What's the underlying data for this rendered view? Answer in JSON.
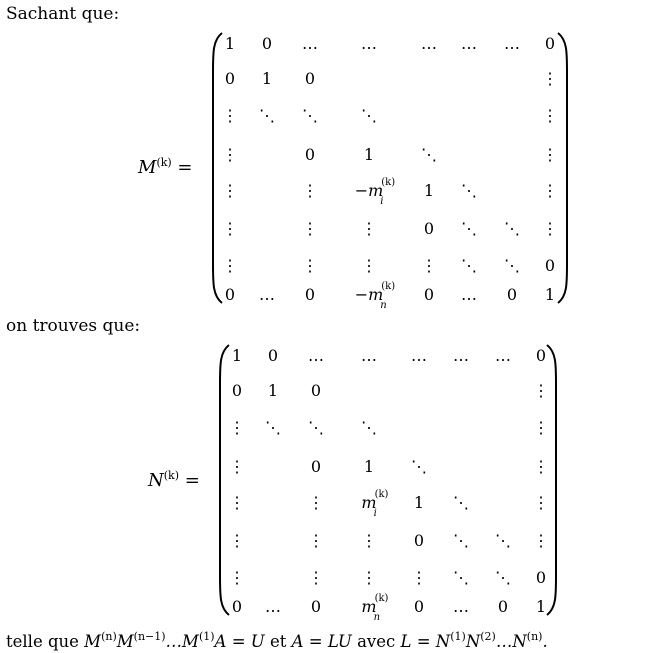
{
  "intro": "Sachant que:",
  "middle": "on trouves que:",
  "matrix_m": {
    "symbol": "M",
    "superscript": "(k)",
    "equals": "=",
    "rows": [
      [
        "1",
        "0",
        "…",
        "…",
        "…",
        "…",
        "…",
        "0"
      ],
      [
        "0",
        "1",
        "0",
        "",
        "",
        "",
        "",
        "⋮"
      ],
      [
        "⋮",
        "⋱",
        "⋱",
        "⋱",
        "",
        "",
        "",
        "⋮"
      ],
      [
        "⋮",
        "",
        "0",
        "1",
        "⋱",
        "",
        "",
        "⋮"
      ],
      [
        "⋮",
        "",
        "⋮",
        "-m_i^(k)",
        "1",
        "⋱",
        "",
        "⋮"
      ],
      [
        "⋮",
        "",
        "⋮",
        "⋮",
        "0",
        "⋱",
        "⋱",
        "⋮"
      ],
      [
        "⋮",
        "",
        "⋮",
        "⋮",
        "⋮",
        "⋱",
        "⋱",
        "0"
      ],
      [
        "0",
        "…",
        "0",
        "-m_n^(k)",
        "0",
        "…",
        "0",
        "1"
      ]
    ]
  },
  "matrix_n": {
    "symbol": "N",
    "superscript": "(k)",
    "equals": "=",
    "rows": [
      [
        "1",
        "0",
        "…",
        "…",
        "…",
        "…",
        "…",
        "0"
      ],
      [
        "0",
        "1",
        "0",
        "",
        "",
        "",
        "",
        "⋮"
      ],
      [
        "⋮",
        "⋱",
        "⋱",
        "⋱",
        "",
        "",
        "",
        "⋮"
      ],
      [
        "⋮",
        "",
        "0",
        "1",
        "⋱",
        "",
        "",
        "⋮"
      ],
      [
        "⋮",
        "",
        "⋮",
        "m_i^(k)",
        "1",
        "⋱",
        "",
        "⋮"
      ],
      [
        "⋮",
        "",
        "⋮",
        "⋮",
        "0",
        "⋱",
        "⋱",
        "⋮"
      ],
      [
        "⋮",
        "",
        "⋮",
        "⋮",
        "⋮",
        "⋱",
        "⋱",
        "0"
      ],
      [
        "0",
        "…",
        "0",
        "m_n^(k)",
        "0",
        "…",
        "0",
        "1"
      ]
    ]
  },
  "conclusion": {
    "telle_que": "telle que",
    "equation1": "M(n)M(n−1)…M(1)A = U",
    "et": "et",
    "equation2": "A = LU",
    "avec": "avec",
    "equation3": "L = N(1)N(2)…N(n)."
  }
}
